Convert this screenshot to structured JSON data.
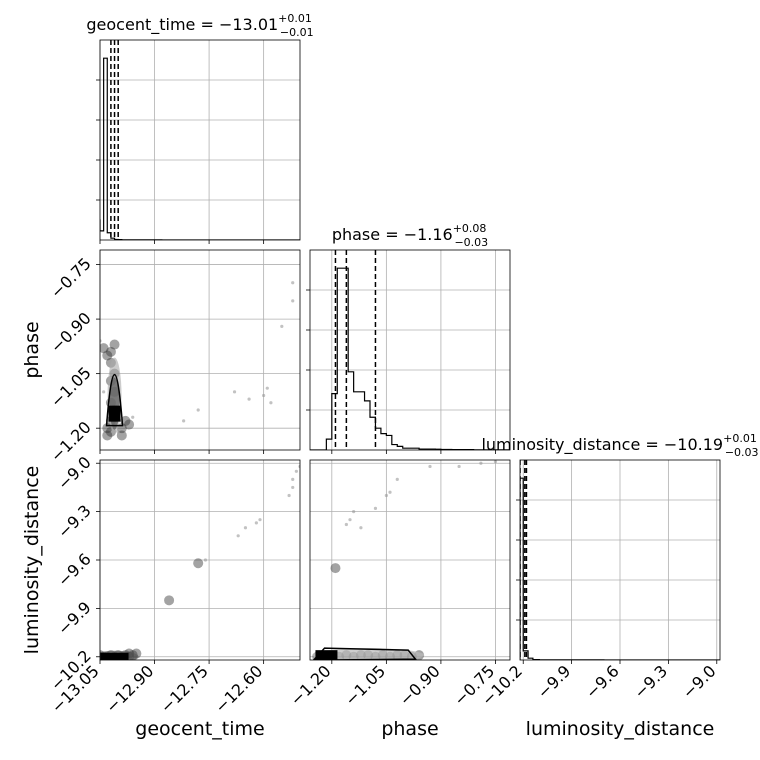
{
  "chart_data": {
    "type": "corner",
    "parameters": [
      "geocent_time",
      "phase",
      "luminosity_distance"
    ],
    "titles": [
      {
        "param": "geocent_time",
        "prefix": "geocent_time = ",
        "median": "−13.01",
        "plus": "+0.01",
        "minus": "−0.01"
      },
      {
        "param": "phase",
        "prefix": "phase = ",
        "median": "−1.16",
        "plus": "+0.08",
        "minus": "−0.03"
      },
      {
        "param": "luminosity_distance",
        "prefix": "luminosity_distance = ",
        "median": "−10.19",
        "plus": "+0.01",
        "minus": "−0.03"
      }
    ],
    "ranges": {
      "geocent_time": [
        -13.05,
        -12.5
      ],
      "phase": [
        -1.26,
        -0.71
      ],
      "luminosity_distance": [
        -10.22,
        -8.98
      ]
    },
    "ticks": {
      "geocent_time": {
        "values": [
          -13.05,
          -12.9,
          -12.75,
          -12.6
        ],
        "labels": [
          "−13.05",
          "−12.90",
          "−12.75",
          "−12.60"
        ]
      },
      "phase": {
        "values": [
          -1.2,
          -1.05,
          -0.9,
          -0.75
        ],
        "labels": [
          "−1.20",
          "−1.05",
          "−0.90",
          "−0.75"
        ]
      },
      "luminosity_distance": {
        "values": [
          -10.2,
          -9.9,
          -9.6,
          -9.3,
          -9.0
        ],
        "labels": [
          "−10.2",
          "−9.9",
          "−9.6",
          "−9.3",
          "−9.0"
        ]
      }
    },
    "axis_labels": {
      "x": [
        "geocent_time",
        "phase",
        "luminosity_distance"
      ],
      "y": [
        "",
        "phase",
        "luminosity_distance"
      ]
    },
    "histograms": {
      "geocent_time": {
        "edges": [
          -13.083,
          -13.05,
          -13.04,
          -13.03,
          -13.02,
          -13.01,
          -13.0,
          -12.99,
          -12.98,
          -12.97,
          -12.96,
          -12.95,
          -12.94,
          -12.93,
          -12.92,
          -12.91,
          -12.9,
          -12.89,
          -12.88,
          -12.87,
          -12.86,
          -12.85,
          -12.84,
          -12.83,
          -12.82,
          -12.81,
          -12.8,
          -12.79,
          -12.78,
          -12.77,
          -12.76,
          -12.75,
          -12.74,
          -12.73,
          -12.72,
          -12.71,
          -12.7,
          -12.69,
          -12.68,
          -12.67,
          -12.66,
          -12.65,
          -12.64,
          -12.63,
          -12.62,
          -12.61,
          -12.6,
          -12.59,
          -12.58,
          -12.57,
          -12.56,
          -12.55,
          -12.54,
          -12.53,
          -12.52,
          -12.51,
          -12.5
        ],
        "counts": [
          0.11,
          0.05,
          1.0,
          0.04,
          0.01,
          0.003,
          0.002,
          0.001,
          0.001,
          0.001,
          0.001,
          0.001,
          0.0005,
          0.0005,
          0.0005,
          0.0005,
          0.0005,
          0.0005,
          0.0003,
          0.0003,
          0.0003,
          0.0003,
          0.0003,
          0.0003,
          0.0003,
          0.0002,
          0.0002,
          0.0002,
          0.0002,
          0.0002,
          0.0002,
          0.0002,
          0.0002,
          0.0002,
          0.0002,
          0.0002,
          0.0002,
          0.0002,
          0.0002,
          0.0002,
          0.0002,
          0.0002,
          0.0002,
          0.0002,
          0.0002,
          0.0002,
          0.0002,
          0.0002,
          0.0002,
          0.0002,
          0.0002,
          0.0002,
          0.0002,
          0.0002,
          0.0002,
          0.0002
        ]
      },
      "phase": {
        "edges": [
          -1.26,
          -1.215,
          -1.2,
          -1.185,
          -1.17,
          -1.155,
          -1.14,
          -1.125,
          -1.11,
          -1.095,
          -1.08,
          -1.065,
          -1.05,
          -1.035,
          -1.02,
          -1.005,
          -0.99,
          -0.975,
          -0.96,
          -0.945,
          -0.93,
          -0.915,
          -0.9,
          -0.885,
          -0.87,
          -0.855,
          -0.84,
          -0.825,
          -0.81,
          -0.795,
          -0.78,
          -0.765,
          -0.75,
          -0.735,
          -0.72,
          -0.71
        ],
        "counts": [
          0.0,
          0.06,
          0.31,
          1.0,
          1.0,
          0.43,
          0.32,
          0.32,
          0.27,
          0.18,
          0.12,
          0.09,
          0.08,
          0.03,
          0.02,
          0.01,
          0.01,
          0.01,
          0.005,
          0.005,
          0.005,
          0.004,
          0.003,
          0.003,
          0.002,
          0.002,
          0.002,
          0.002,
          0.001,
          0.001,
          0.001,
          0.001,
          0.001,
          0.001,
          0.001
        ]
      },
      "luminosity_distance": {
        "edges": [
          -10.22,
          -10.2,
          -10.17,
          -10.14,
          -10.1,
          -10.0,
          -9.9,
          -9.8,
          -9.7,
          -9.6,
          -9.5,
          -9.4,
          -9.3,
          -9.2,
          -9.1,
          -9.0,
          -8.98
        ],
        "counts": [
          1.0,
          0.05,
          0.01,
          0.002,
          0.001,
          0.0008,
          0.0006,
          0.0005,
          0.0004,
          0.0004,
          0.0003,
          0.0003,
          0.0003,
          0.0003,
          0.0002,
          0.0002
        ]
      }
    },
    "quantiles": {
      "geocent_time": [
        -13.02,
        -13.01,
        -13.0
      ],
      "phase": [
        -1.19,
        -1.16,
        -1.08
      ],
      "luminosity_distance": [
        -10.22,
        -10.19,
        -10.18
      ]
    },
    "samples": {
      "geocent_time_vs_phase": [
        [
          -13.03,
          -1.2
        ],
        [
          -13.02,
          -1.21
        ],
        [
          -13.02,
          -1.18
        ],
        [
          -13.01,
          -1.17
        ],
        [
          -13.01,
          -1.15
        ],
        [
          -13.02,
          -1.13
        ],
        [
          -13.01,
          -1.1
        ],
        [
          -13.02,
          -1.07
        ],
        [
          -13.01,
          -1.05
        ],
        [
          -13.02,
          -1.02
        ],
        [
          -13.02,
          -0.99
        ],
        [
          -13.01,
          -0.97
        ],
        [
          -13.03,
          -1.0
        ],
        [
          -13.04,
          -0.98
        ],
        [
          -13.03,
          -1.22
        ],
        [
          -12.99,
          -1.2
        ],
        [
          -12.98,
          -1.18
        ],
        [
          -12.99,
          -1.22
        ],
        [
          -12.97,
          -1.19
        ],
        [
          -12.96,
          -1.17
        ],
        [
          -13.0,
          -1.21
        ],
        [
          -13.0,
          -1.16
        ],
        [
          -13.05,
          -0.96
        ],
        [
          -13.04,
          -1.1
        ],
        [
          -12.82,
          -1.18
        ],
        [
          -12.78,
          -1.15
        ],
        [
          -12.68,
          -1.1
        ],
        [
          -12.64,
          -1.12
        ],
        [
          -12.6,
          -1.11
        ],
        [
          -12.59,
          -1.09
        ],
        [
          -12.58,
          -1.13
        ],
        [
          -12.55,
          -0.92
        ],
        [
          -12.52,
          -0.8
        ],
        [
          -12.52,
          -0.85
        ]
      ],
      "geocent_time_vs_luminosity_distance": [
        [
          -13.04,
          -10.2
        ],
        [
          -13.03,
          -10.2
        ],
        [
          -13.02,
          -10.19
        ],
        [
          -13.01,
          -10.2
        ],
        [
          -13.0,
          -10.19
        ],
        [
          -12.99,
          -10.2
        ],
        [
          -12.98,
          -10.19
        ],
        [
          -12.97,
          -10.2
        ],
        [
          -12.97,
          -10.18
        ],
        [
          -12.96,
          -10.19
        ],
        [
          -12.95,
          -10.18
        ],
        [
          -13.05,
          -10.19
        ],
        [
          -12.86,
          -9.85
        ],
        [
          -12.78,
          -9.62
        ],
        [
          -12.76,
          -9.6
        ],
        [
          -12.67,
          -9.45
        ],
        [
          -12.65,
          -9.4
        ],
        [
          -12.62,
          -9.37
        ],
        [
          -12.61,
          -9.35
        ],
        [
          -12.53,
          -9.2
        ],
        [
          -12.52,
          -9.15
        ],
        [
          -12.51,
          -9.05
        ],
        [
          -12.52,
          -9.1
        ],
        [
          -12.5,
          -9.02
        ]
      ],
      "phase_vs_luminosity_distance": [
        [
          -1.24,
          -10.2
        ],
        [
          -1.22,
          -10.2
        ],
        [
          -1.2,
          -10.2
        ],
        [
          -1.18,
          -10.2
        ],
        [
          -1.16,
          -10.19
        ],
        [
          -1.14,
          -10.2
        ],
        [
          -1.12,
          -10.19
        ],
        [
          -1.1,
          -10.19
        ],
        [
          -1.08,
          -10.2
        ],
        [
          -1.06,
          -10.19
        ],
        [
          -1.04,
          -10.2
        ],
        [
          -1.02,
          -10.19
        ],
        [
          -1.0,
          -10.19
        ],
        [
          -0.98,
          -10.2
        ],
        [
          -0.96,
          -10.19
        ],
        [
          -1.19,
          -9.65
        ],
        [
          -1.16,
          -9.38
        ],
        [
          -1.14,
          -9.3
        ],
        [
          -1.12,
          -9.4
        ],
        [
          -1.08,
          -9.28
        ],
        [
          -1.05,
          -9.2
        ],
        [
          -1.02,
          -9.1
        ],
        [
          -0.93,
          -9.02
        ],
        [
          -0.85,
          -9.02
        ],
        [
          -0.79,
          -9.0
        ],
        [
          -0.75,
          -8.99
        ],
        [
          -1.15,
          -9.35
        ],
        [
          -1.04,
          -9.18
        ]
      ]
    },
    "grid": true
  }
}
